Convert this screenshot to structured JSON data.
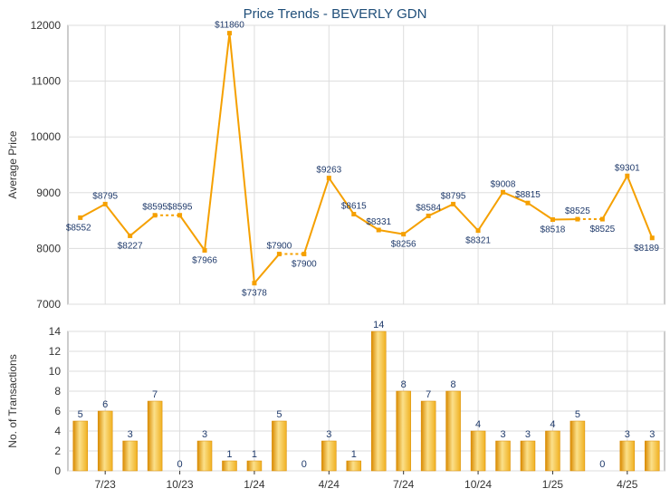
{
  "title": "Price Trends - BEVERLY GDN",
  "colors": {
    "line": "#f5a000",
    "bar": "#f0b020",
    "bar_light": "#fbe08a",
    "bar_dark": "#d98a00",
    "grid": "#dddddd",
    "label": "#1f3a6b",
    "axis": "#333333"
  },
  "chart_data": [
    {
      "type": "line",
      "ylabel": "Average Price",
      "ylim": [
        7000,
        12000
      ],
      "yticks": [
        7000,
        8000,
        9000,
        10000,
        11000,
        12000
      ],
      "grid": true,
      "series": [
        {
          "values": [
            8552,
            8795,
            8227,
            8595,
            8595,
            7966,
            11860,
            7378,
            7900,
            7900,
            9263,
            8615,
            8331,
            8256,
            8584,
            8795,
            8321,
            9008,
            8815,
            8518,
            8525,
            8525,
            9301,
            8189
          ],
          "labels": [
            "$8552",
            "$8795",
            "$8227",
            "$8595",
            "$8595",
            "$7966",
            "$11860",
            "$7378",
            "$7900",
            "$7900",
            "$9263",
            "$8615",
            "$8331",
            "$8256",
            "$8584",
            "$8795",
            "$8321",
            "$9008",
            "$8815",
            "$8518",
            "$8525",
            "$8525",
            "$9301",
            "$8189"
          ]
        }
      ]
    },
    {
      "type": "bar",
      "ylabel": "No. of Transactions",
      "ylim": [
        0,
        14
      ],
      "yticks": [
        0,
        2,
        4,
        6,
        8,
        10,
        12,
        14
      ],
      "grid": true,
      "categories": [
        "7/23",
        "10/23",
        "1/24",
        "4/24",
        "7/24",
        "10/24",
        "1/25",
        "4/25"
      ],
      "values": [
        5,
        6,
        3,
        7,
        0,
        3,
        1,
        1,
        5,
        0,
        3,
        1,
        14,
        8,
        7,
        8,
        4,
        3,
        3,
        4,
        5,
        0,
        3,
        3
      ],
      "labels": [
        "5",
        "6",
        "3",
        "7",
        "0",
        "3",
        "1",
        "1",
        "5",
        "0",
        "3",
        "1",
        "14",
        "8",
        "7",
        "8",
        "4",
        "3",
        "3",
        "4",
        "5",
        "0",
        "3",
        "3"
      ]
    }
  ]
}
